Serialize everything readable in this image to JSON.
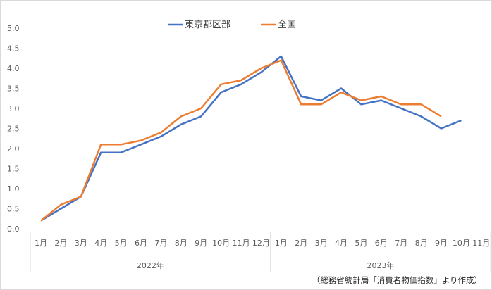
{
  "chart_data": {
    "type": "line",
    "categories": [
      "1月",
      "2月",
      "3月",
      "4月",
      "5月",
      "6月",
      "7月",
      "8月",
      "9月",
      "10月",
      "11月",
      "12月",
      "1月",
      "2月",
      "3月",
      "4月",
      "5月",
      "6月",
      "7月",
      "8月",
      "9月",
      "10月",
      "11月"
    ],
    "year_groups": [
      {
        "label": "2022年",
        "start": 0,
        "count": 12
      },
      {
        "label": "2023年",
        "start": 12,
        "count": 11
      }
    ],
    "series": [
      {
        "name": "東京都区部",
        "color": "#4472C4",
        "values": [
          0.2,
          0.5,
          0.8,
          1.9,
          1.9,
          2.1,
          2.3,
          2.6,
          2.8,
          3.4,
          3.6,
          3.9,
          4.3,
          3.3,
          3.2,
          3.5,
          3.1,
          3.2,
          3.0,
          2.8,
          2.5,
          2.7,
          null
        ]
      },
      {
        "name": "全国",
        "color": "#ED7D31",
        "values": [
          0.2,
          0.6,
          0.8,
          2.1,
          2.1,
          2.2,
          2.4,
          2.8,
          3.0,
          3.6,
          3.7,
          4.0,
          4.2,
          3.1,
          3.1,
          3.4,
          3.2,
          3.3,
          3.1,
          3.1,
          2.8,
          null,
          null
        ]
      }
    ],
    "yticks": [
      "0.0",
      "0.5",
      "1.0",
      "1.5",
      "2.0",
      "2.5",
      "3.0",
      "3.5",
      "4.0",
      "4.5",
      "5.0"
    ],
    "ylim": [
      0,
      5.0
    ],
    "grid": false,
    "legend_position": "top"
  },
  "source_note": "（総務省統計局「消費者物価指数」より作成）"
}
